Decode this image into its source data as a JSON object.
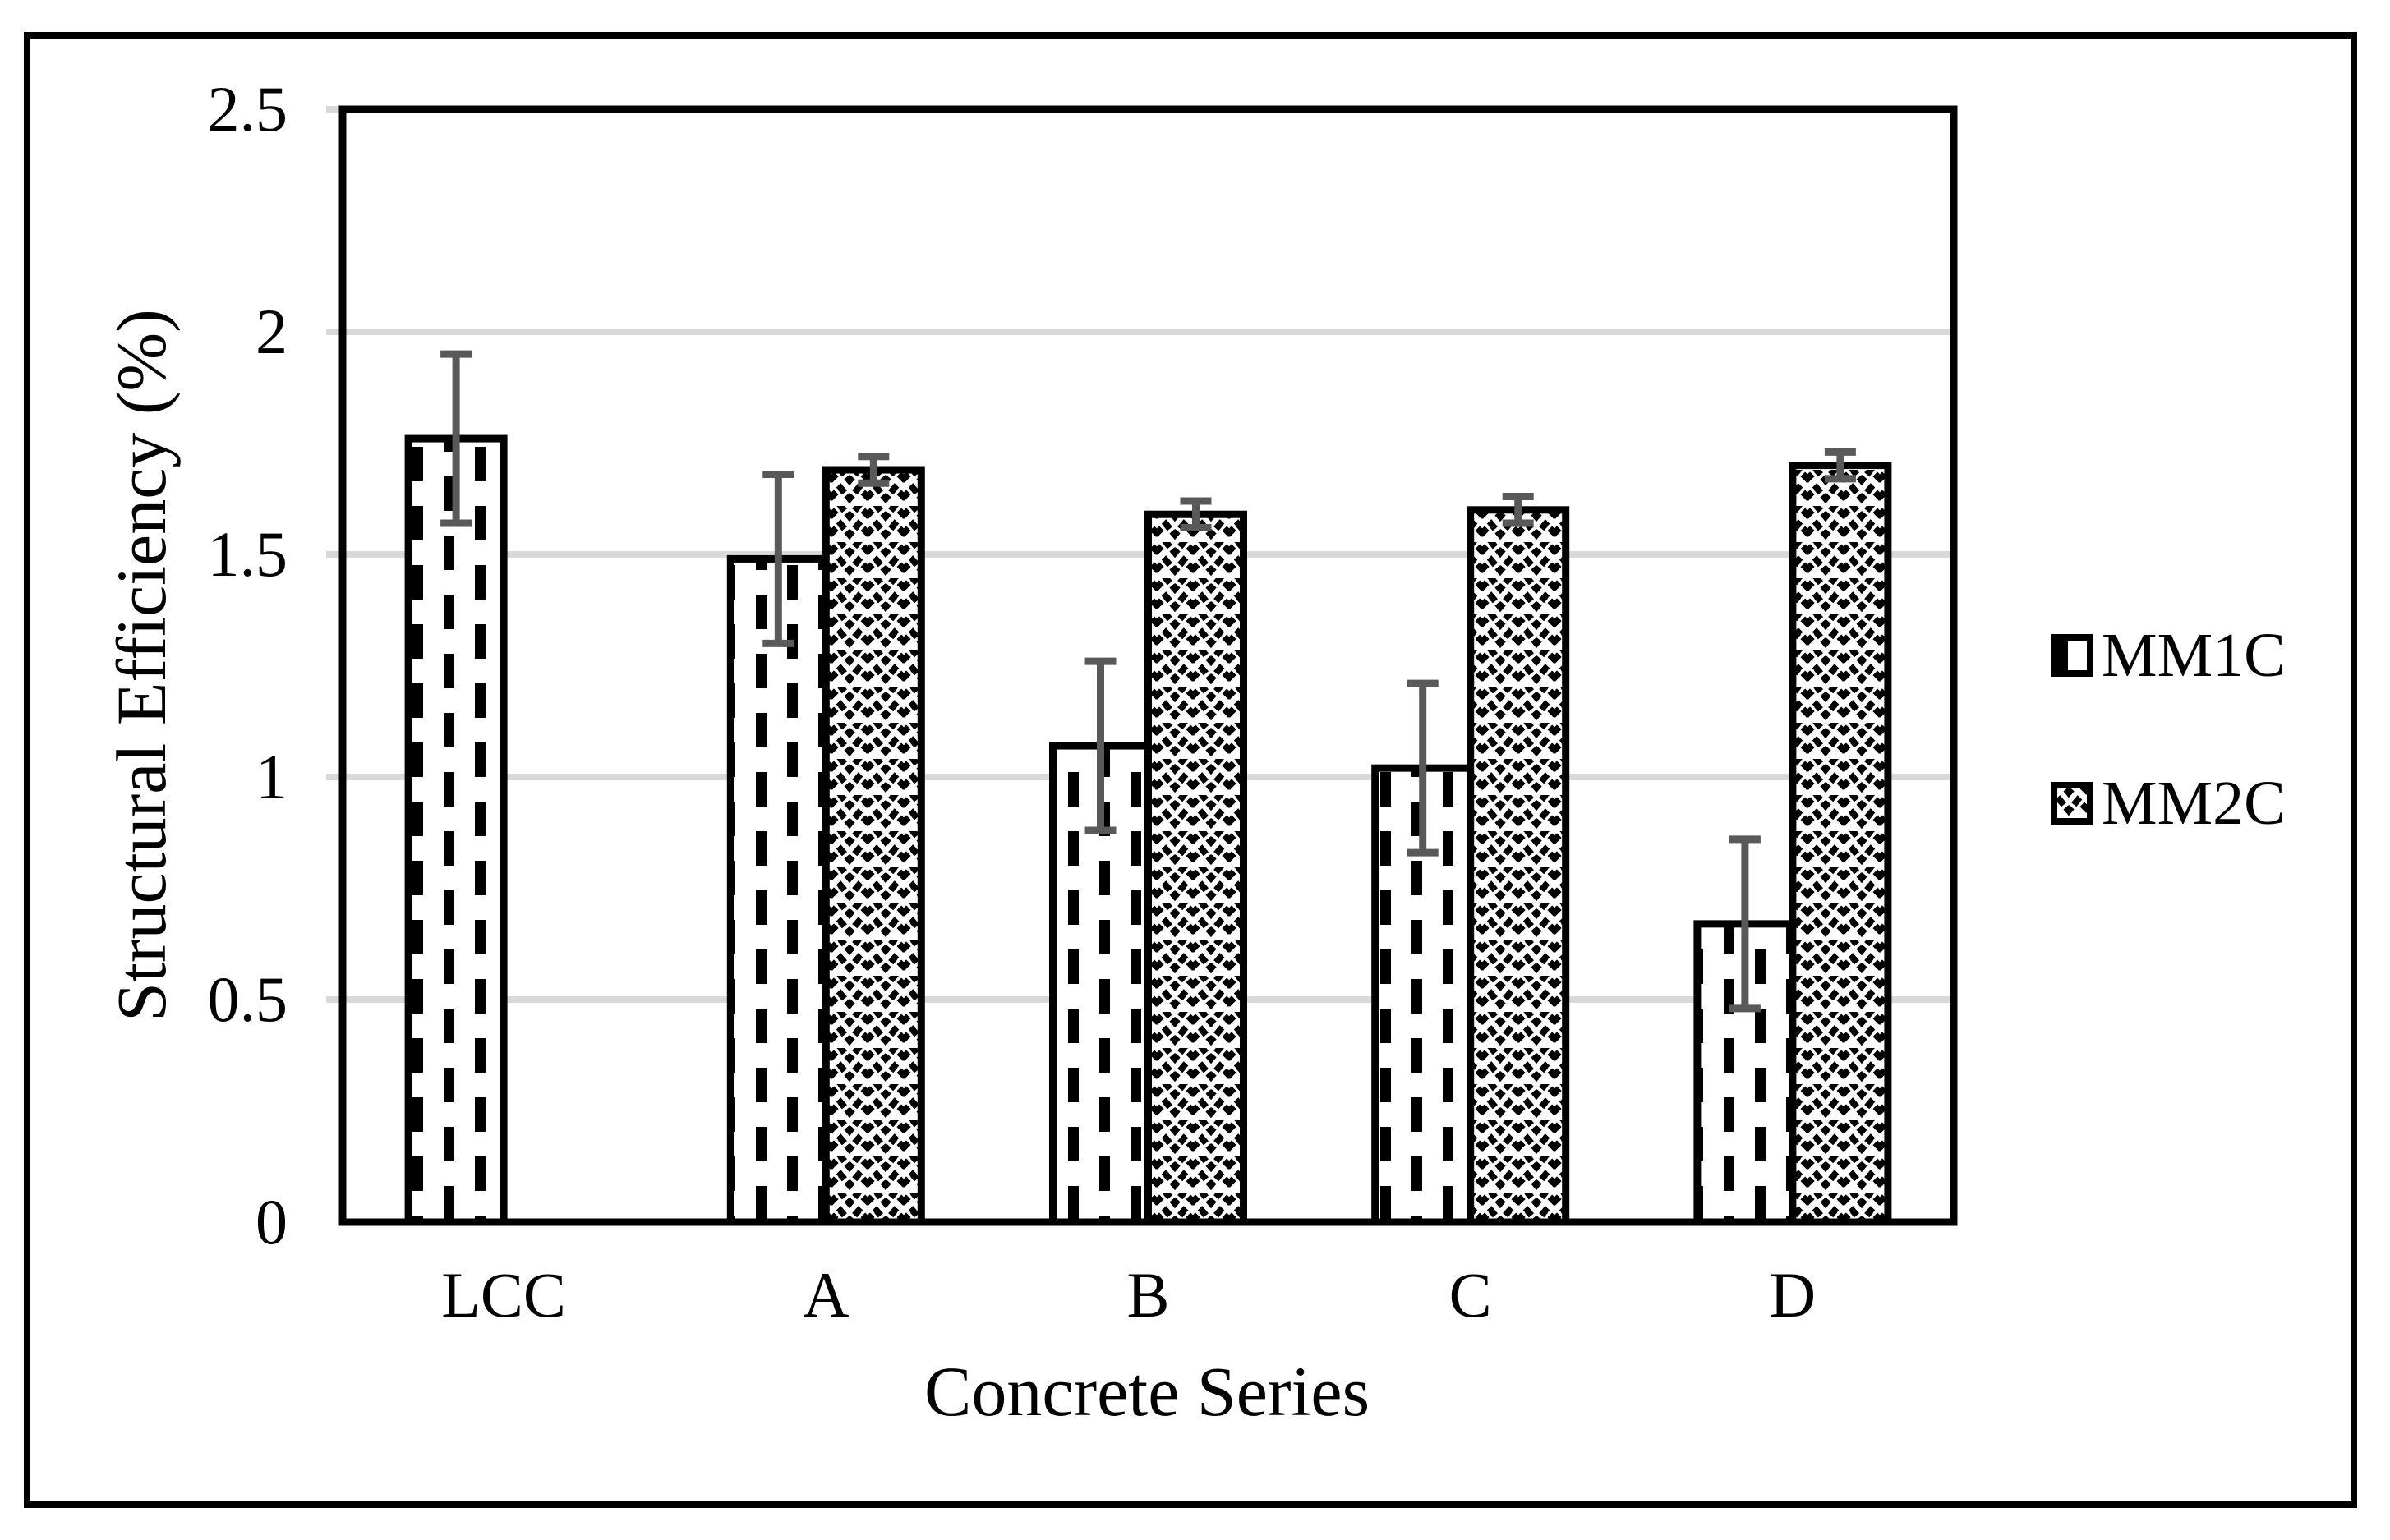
{
  "chart_data": {
    "type": "bar",
    "title": "",
    "xlabel": "Concrete Series",
    "ylabel": "Structural Efficiency (%)",
    "categories": [
      "LCC",
      "A",
      "B",
      "C",
      "D"
    ],
    "series": [
      {
        "name": "MM1C",
        "pattern": "vertical-dashes",
        "values": [
          1.76,
          1.49,
          1.07,
          1.02,
          0.67
        ],
        "errors": [
          0.19,
          0.19,
          0.19,
          0.19,
          0.19
        ]
      },
      {
        "name": "MM2C",
        "pattern": "diagonal-weave",
        "values": [
          null,
          1.69,
          1.59,
          1.6,
          1.7
        ],
        "errors": [
          null,
          0.03,
          0.03,
          0.03,
          0.03
        ]
      }
    ],
    "ylim": [
      0,
      2.5
    ],
    "ytick_step": 0.5,
    "ytick_labels": [
      "0",
      "0.5",
      "1",
      "1.5",
      "2",
      "2.5"
    ],
    "grid": "horizontal",
    "legend_position": "right",
    "colors": {
      "background": "#ffffff",
      "bar_fill": "#ffffff",
      "bar_border": "#000000",
      "error_bar": "#595959",
      "gridline": "#d9d9d9",
      "text": "#000000"
    }
  }
}
